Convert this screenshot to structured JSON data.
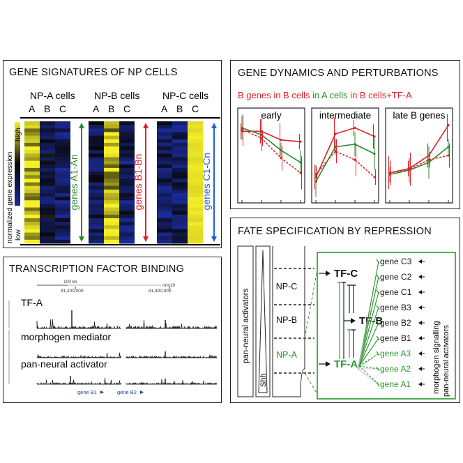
{
  "panels": {
    "signatures": {
      "title": "GENE SIGNATURES OF NP CELLS",
      "groups": [
        {
          "title": "NP-A cells",
          "cols": [
            "A",
            "B",
            "C"
          ],
          "gene_label": "genes A1-An",
          "color": "#2a8a2a"
        },
        {
          "title": "NP-B cells",
          "cols": [
            "A",
            "B",
            "C"
          ],
          "gene_label": "genes B1-Bn",
          "color": "#e0202a"
        },
        {
          "title": "NP-C cells",
          "cols": [
            "A",
            "B",
            "C"
          ],
          "gene_label": "genes C1-Cn",
          "color": "#2060d8"
        }
      ],
      "scale_label": "normalized gene expression",
      "scale_high": "high",
      "scale_low": "low"
    },
    "dynamics": {
      "title": "GENE DYNAMICS AND PERTURBATIONS",
      "legend": [
        {
          "text": "B genes in B cells",
          "color": "#e0202a"
        },
        {
          "text": "in A cells",
          "color": "#2a8a2a"
        },
        {
          "text": "in B cells+TF-A",
          "color": "#e0202a"
        }
      ],
      "subplots": [
        {
          "label": "early",
          "series": [
            {
              "name": "B genes in B cells",
              "values": [
                0.78,
                0.78,
                0.68,
                0.66
              ]
            },
            {
              "name": "in A cells",
              "values": [
                0.82,
                0.74,
                0.56,
                0.42
              ]
            },
            {
              "name": "in B cells+TF-A",
              "values": [
                0.8,
                0.7,
                0.47,
                0.3
              ]
            }
          ]
        },
        {
          "label": "intermediate",
          "series": [
            {
              "name": "B genes in B cells",
              "values": [
                0.25,
                0.75,
                0.82,
                0.72
              ]
            },
            {
              "name": "in A cells",
              "values": [
                0.2,
                0.6,
                0.63,
                0.52
              ]
            },
            {
              "name": "in B cells+TF-A",
              "values": [
                0.28,
                0.55,
                0.45,
                0.25
              ]
            }
          ]
        },
        {
          "label": "late B genes",
          "series": [
            {
              "name": "B genes in B cells",
              "values": [
                0.3,
                0.35,
                0.5,
                0.85
              ]
            },
            {
              "name": "in A cells",
              "values": [
                0.28,
                0.33,
                0.42,
                0.6
              ]
            },
            {
              "name": "in B cells+TF-A",
              "values": [
                0.3,
                0.34,
                0.45,
                0.5
              ]
            }
          ]
        }
      ]
    },
    "binding": {
      "title": "TRANSCRIPTION FACTOR BINDING",
      "scale_label": "100 kb",
      "assembly": "mm10",
      "coord1": "91,200,000",
      "coord2": "91,300,000",
      "tracks": [
        "TF-A",
        "morphogen mediator",
        "pan-neural activator"
      ],
      "genes": [
        "gene B1",
        "gene B2"
      ]
    },
    "fate": {
      "title": "FATE SPECIFICATION BY REPRESSION",
      "pan_neural": "pan-neural activators",
      "shh": "Shh",
      "domains": [
        {
          "name": "NP-C",
          "color": "#111111"
        },
        {
          "name": "NP-B",
          "color": "#111111"
        },
        {
          "name": "NP-A",
          "color": "#2a9a2a"
        }
      ],
      "tfs": [
        "TF-C",
        "TF-B",
        "TF-A"
      ],
      "genes": [
        {
          "name": "gene C3",
          "color": "#111111"
        },
        {
          "name": "gene C2",
          "color": "#111111"
        },
        {
          "name": "gene C1",
          "color": "#111111"
        },
        {
          "name": "gene B3",
          "color": "#111111"
        },
        {
          "name": "gene B2",
          "color": "#111111"
        },
        {
          "name": "gene B1",
          "color": "#111111"
        },
        {
          "name": "gene A3",
          "color": "#2a9a2a"
        },
        {
          "name": "gene A2",
          "color": "#2a9a2a"
        },
        {
          "name": "gene A1",
          "color": "#2a9a2a"
        }
      ],
      "side_label_1": "morphogen signalling",
      "side_label_2": "pan-neural activators"
    }
  }
}
